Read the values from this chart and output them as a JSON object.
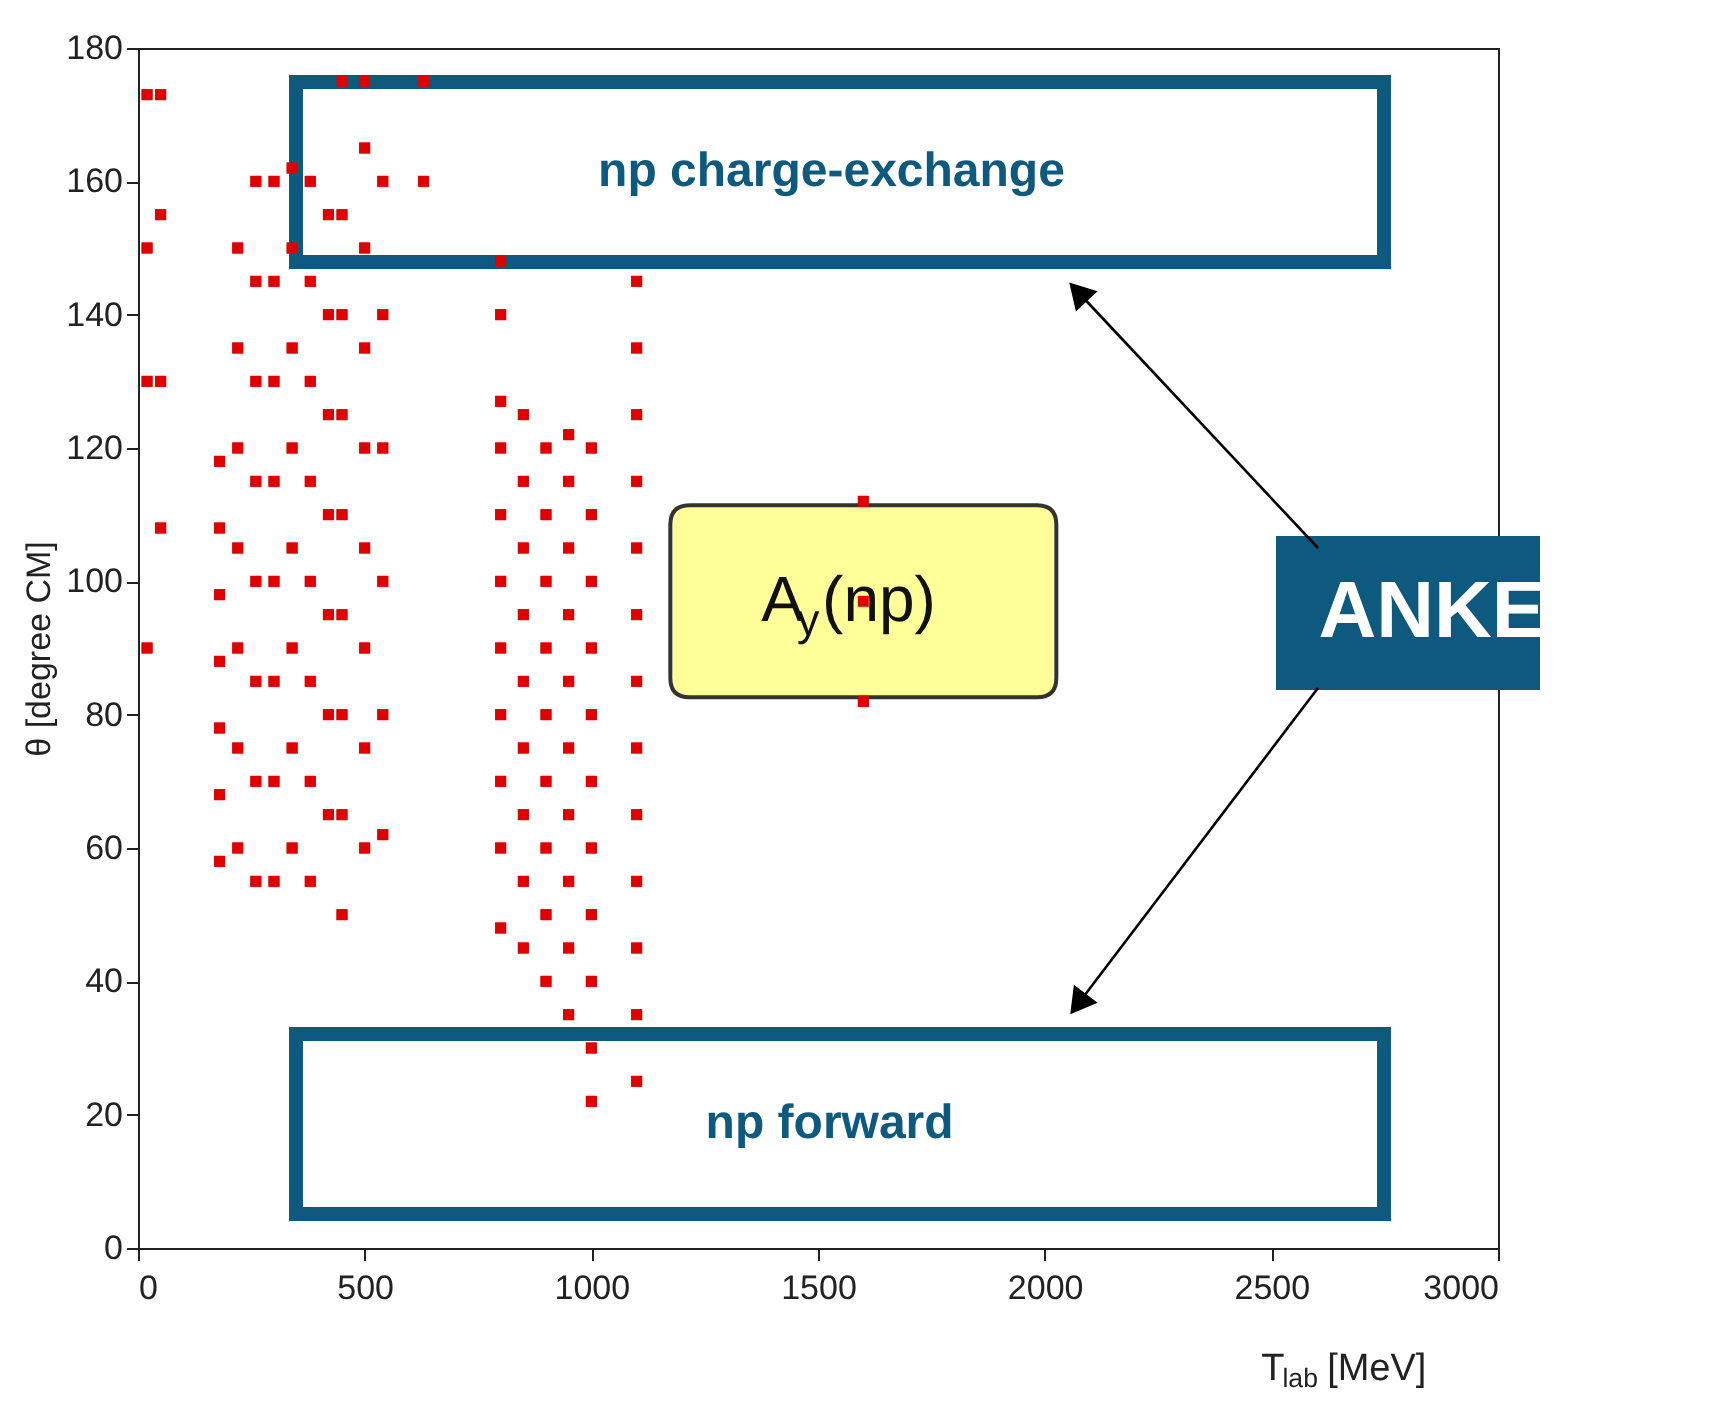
{
  "chart_data": {
    "type": "scatter",
    "xlabel": "T$_{lab}$ [MeV]",
    "ylabel": "θ [degree CM]",
    "xlim": [
      0,
      3000
    ],
    "xticks": [
      0,
      500,
      1000,
      1500,
      2000,
      2500,
      3000
    ],
    "ylim": [
      0,
      180
    ],
    "yticks": [
      0,
      20,
      40,
      60,
      80,
      100,
      120,
      140,
      160,
      180
    ],
    "grid": false,
    "marker": "square",
    "annotations": [
      "np charge-exchange",
      "np forward",
      {
        "text": "A$_{y}$(np)",
        "x": 1600,
        "y": 97
      },
      "ANKE"
    ],
    "series": [
      {
        "color": "#e00000",
        "x": [
          20,
          20,
          20,
          20,
          50,
          50,
          50,
          50,
          180,
          180,
          180,
          180,
          180,
          180,
          180,
          220,
          220,
          220,
          220,
          220,
          220,
          220,
          260,
          260,
          260,
          260,
          260,
          260,
          260,
          260,
          300,
          300,
          300,
          300,
          300,
          300,
          300,
          300,
          340,
          340,
          340,
          340,
          340,
          340,
          340,
          340,
          380,
          380,
          380,
          380,
          380,
          380,
          380,
          380,
          420,
          420,
          420,
          420,
          420,
          420,
          420,
          450,
          450,
          450,
          450,
          450,
          450,
          450,
          450,
          450,
          500,
          500,
          500,
          500,
          500,
          500,
          500,
          500,
          500,
          540,
          540,
          540,
          540,
          540,
          540,
          630,
          630,
          800,
          800,
          800,
          800,
          800,
          800,
          800,
          800,
          800,
          800,
          800,
          850,
          850,
          850,
          850,
          850,
          850,
          850,
          850,
          850,
          900,
          900,
          900,
          900,
          900,
          900,
          900,
          900,
          900,
          950,
          950,
          950,
          950,
          950,
          950,
          950,
          950,
          950,
          950,
          1000,
          1000,
          1000,
          1000,
          1000,
          1000,
          1000,
          1000,
          1000,
          1000,
          1000,
          1100,
          1100,
          1100,
          1100,
          1100,
          1100,
          1100,
          1100,
          1100,
          1100,
          1100,
          1100,
          1100,
          1600,
          1600,
          1600
        ],
        "values": [
          173,
          150,
          130,
          90,
          173,
          155,
          130,
          108,
          58,
          68,
          78,
          88,
          98,
          108,
          118,
          60,
          75,
          90,
          105,
          120,
          135,
          150,
          55,
          70,
          85,
          100,
          115,
          130,
          145,
          160,
          55,
          70,
          85,
          100,
          115,
          130,
          145,
          160,
          60,
          75,
          90,
          105,
          120,
          135,
          150,
          162,
          55,
          70,
          85,
          100,
          115,
          130,
          145,
          160,
          65,
          80,
          95,
          110,
          125,
          140,
          155,
          50,
          65,
          80,
          95,
          110,
          125,
          140,
          155,
          175,
          60,
          75,
          90,
          105,
          120,
          135,
          150,
          165,
          175,
          62,
          80,
          100,
          120,
          140,
          160,
          160,
          175,
          48,
          60,
          70,
          80,
          90,
          100,
          110,
          120,
          127,
          140,
          148,
          45,
          55,
          65,
          75,
          85,
          95,
          105,
          115,
          125,
          40,
          50,
          60,
          70,
          80,
          90,
          100,
          110,
          120,
          35,
          45,
          55,
          65,
          75,
          85,
          95,
          105,
          115,
          122,
          22,
          30,
          40,
          50,
          60,
          70,
          80,
          90,
          100,
          110,
          120,
          25,
          35,
          45,
          55,
          65,
          75,
          85,
          95,
          105,
          115,
          125,
          135,
          145,
          82,
          97,
          112
        ]
      }
    ]
  }
}
